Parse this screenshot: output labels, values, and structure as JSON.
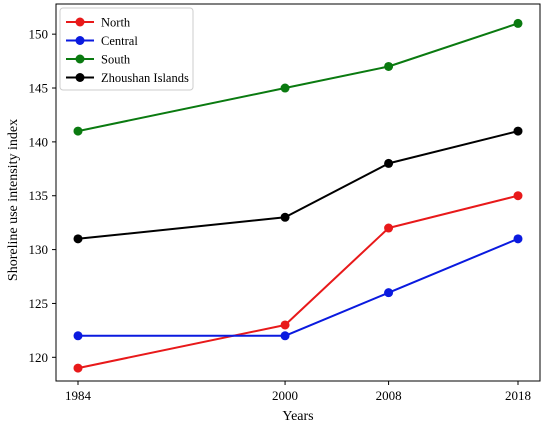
{
  "chart_data": {
    "type": "line",
    "xlabel": "Years",
    "ylabel": "Shoreline use intensity index",
    "x": [
      1984,
      2000,
      2008,
      2018
    ],
    "x_ticks": [
      "1984",
      "2000",
      "2008",
      "2018"
    ],
    "y_ticks": [
      "120",
      "125",
      "130",
      "135",
      "140",
      "145",
      "150"
    ],
    "xlim": [
      1982.3,
      2019.7
    ],
    "ylim": [
      117.8,
      152.8
    ],
    "grid": false,
    "legend_position": "top-left",
    "series": [
      {
        "name": "North",
        "color": "#e8191a",
        "values": [
          119,
          123,
          132,
          135
        ]
      },
      {
        "name": "Central",
        "color": "#0a1adf",
        "values": [
          122,
          122,
          126,
          131
        ]
      },
      {
        "name": "South",
        "color": "#0a7a10",
        "values": [
          141,
          145,
          147,
          151
        ]
      },
      {
        "name": "Zhoushan Islands",
        "color": "#000000",
        "values": [
          131,
          133,
          138,
          141
        ]
      }
    ]
  }
}
